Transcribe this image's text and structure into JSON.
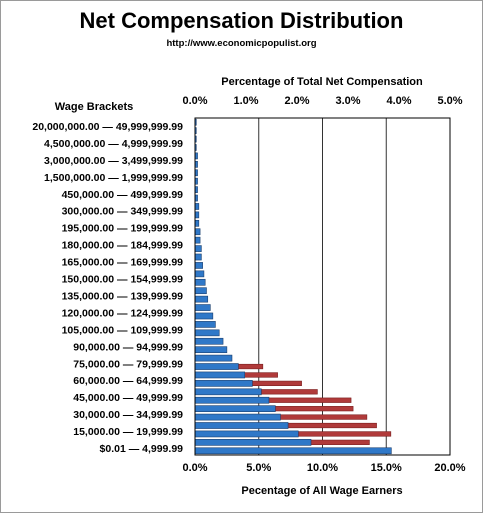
{
  "chart_data": {
    "type": "bar",
    "title": "Net Compensation Distribution",
    "subtitle": "http://www.economicpopulist.org",
    "xlabel_top": "Percentage of Total Net Compensation",
    "xlabel_bottom": "Pecentage of All Wage Earners",
    "ylabel": "Wage Brackets",
    "top_axis": {
      "range": [
        0,
        5
      ],
      "ticks": [
        "0.0%",
        "1.0%",
        "2.0%",
        "3.0%",
        "4.0%",
        "5.0%"
      ]
    },
    "bottom_axis": {
      "range": [
        0,
        20
      ],
      "ticks": [
        "0.0%",
        "5.0%",
        "10.0%",
        "15.0%",
        "20.0%"
      ]
    },
    "grid": "vertical",
    "category_labels": [
      "20,000,000.00 — 49,999,999.99",
      "4,500,000.00 — 4,999,999.99",
      "3,000,000.00 — 3,499,999.99",
      "1,500,000.00 — 1,999,999.99",
      "450,000.00 — 499,999.99",
      "300,000.00 — 349,999.99",
      "195,000.00 — 199,999.99",
      "180,000.00 — 184,999.99",
      "165,000.00 — 169,999.99",
      "150,000.00 — 154,999.99",
      "135,000.00 — 139,999.99",
      "120,000.00 — 124,999.99",
      "105,000.00 — 109,999.99",
      "90,000.00 — 94,999.99",
      "75,000.00 — 79,999.99",
      "60,000.00 — 64,999.99",
      "45,000.00 — 49,999.99",
      "30,000.00 — 34,999.99",
      "15,000.00 — 19,999.99",
      "$0.01 — 4,999.99"
    ],
    "series": [
      {
        "axis": "top",
        "color": "#b03a3a",
        "values": [
          2.69,
          3.42,
          3.84,
          3.56,
          3.37,
          3.1,
          3.06,
          2.4,
          2.09,
          1.62,
          1.33,
          0.72,
          0.0,
          0.0,
          0.0,
          0.0,
          0.0,
          0.0,
          0.0,
          0.0,
          0.0,
          0.0,
          0.0,
          0.0,
          0.0,
          0.0,
          0.0,
          0.0,
          0.0,
          0.0,
          0.0,
          0.0,
          0.0,
          0.0,
          0.0,
          0.0,
          0.0,
          0.0,
          0.0,
          0.0
        ]
      },
      {
        "axis": "bottom",
        "color": "#2f78c8",
        "values": [
          15.4,
          9.1,
          8.1,
          7.3,
          6.7,
          6.3,
          5.8,
          5.2,
          4.5,
          3.9,
          3.4,
          2.9,
          2.5,
          2.2,
          1.9,
          1.6,
          1.4,
          1.2,
          1.0,
          0.9,
          0.8,
          0.7,
          0.6,
          0.5,
          0.5,
          0.4,
          0.4,
          0.3,
          0.3,
          0.3,
          0.2,
          0.2,
          0.2,
          0.2,
          0.2,
          0.2,
          0.1,
          0.1,
          0.1,
          0.1
        ]
      }
    ]
  }
}
